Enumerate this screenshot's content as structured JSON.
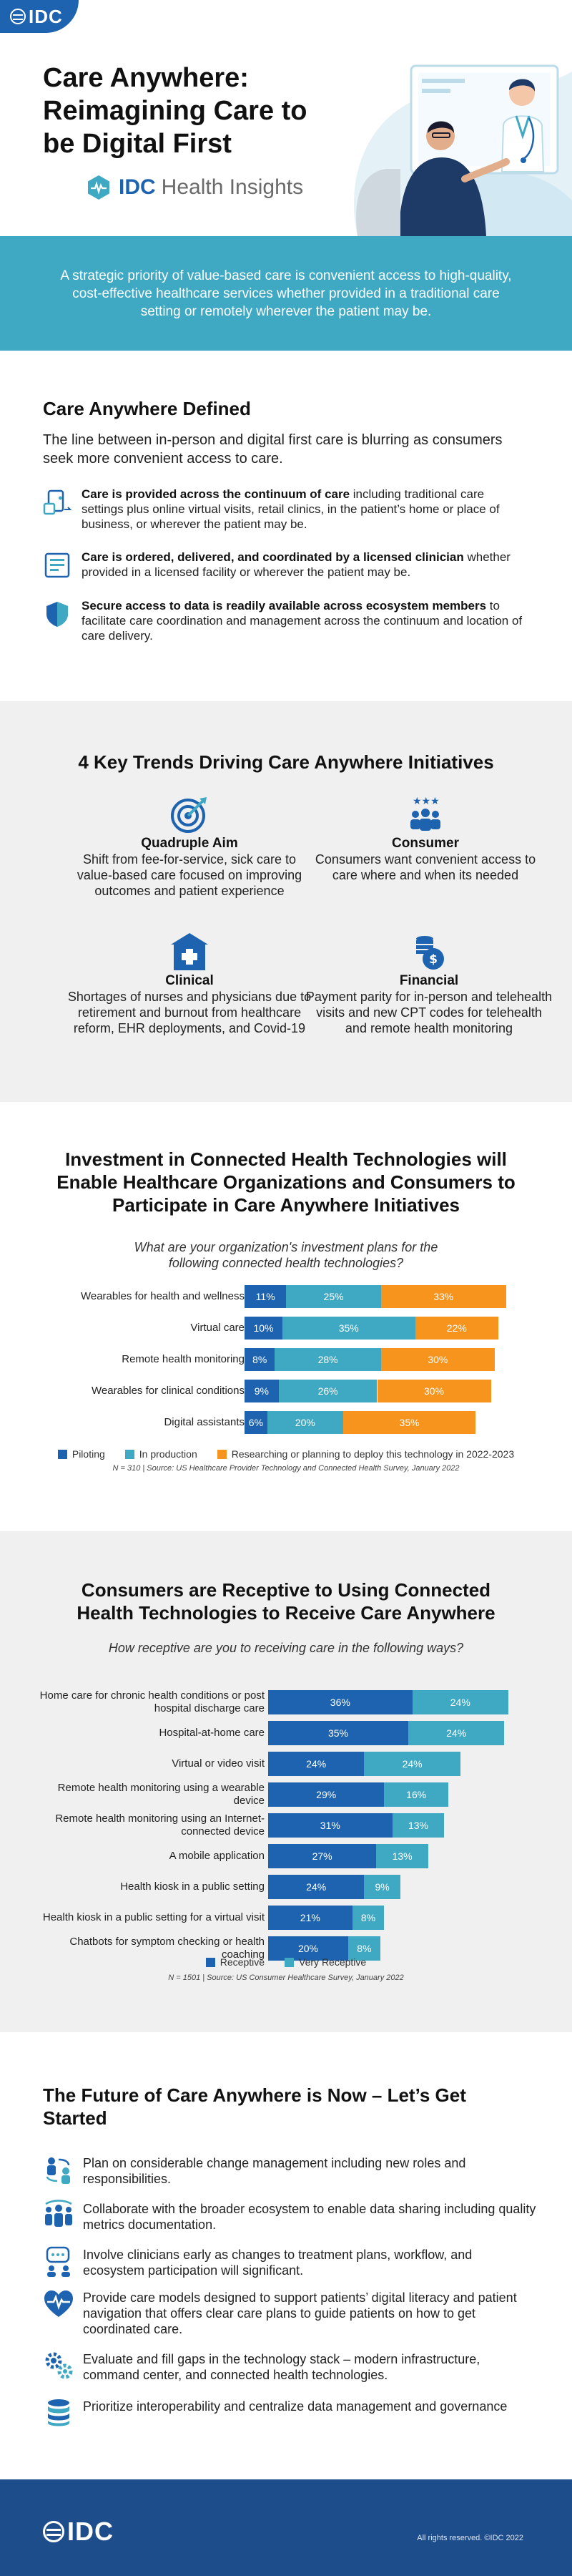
{
  "brand": {
    "logo": "IDC",
    "product_bold": "IDC",
    "product_rest": "Health Insights"
  },
  "hero": {
    "title": "Care Anywhere: Reimagining Care to be Digital First",
    "banner": "A strategic priority of value-based care is convenient access to high-quality, cost-effective healthcare services whether provided in a traditional care setting or remotely wherever the patient may be."
  },
  "defined": {
    "title": "Care Anywhere Defined",
    "lead": "The line between in-person and digital first care is blurring as consumers seek more convenient access to care.",
    "items": [
      {
        "icon": "devices-icon",
        "bold": "Care is provided across the continuum of care",
        "rest": " including traditional care settings plus online virtual visits, retail clinics, in the patient’s home or place of business, or wherever the patient may be."
      },
      {
        "icon": "document-icon",
        "bold": "Care is ordered, delivered, and coordinated by a licensed clinician",
        "rest": " whether provided in a licensed facility or wherever the patient may be."
      },
      {
        "icon": "shield-icon",
        "bold": "Secure access to data is readily available across ecosystem members",
        "rest": " to facilitate care coordination and management across the continuum and location of care delivery."
      }
    ]
  },
  "trends": {
    "title": "4 Key Trends Driving Care Anywhere Initiatives",
    "items": [
      {
        "icon": "target-icon",
        "name": "Quadruple Aim",
        "desc": "Shift from fee-for-service, sick care to value-based care focused on improving outcomes and patient experience"
      },
      {
        "icon": "people-stars-icon",
        "name": "Consumer",
        "desc": "Consumers want convenient access to care where and when its needed"
      },
      {
        "icon": "hospital-icon",
        "name": "Clinical",
        "desc": "Shortages of nurses and physicians due to retirement and burnout from healthcare reform, EHR deployments, and Covid-19"
      },
      {
        "icon": "coins-icon",
        "name": "Financial",
        "desc": "Payment parity for in-person and telehealth visits and new CPT codes for telehealth and remote health monitoring"
      }
    ]
  },
  "investment": {
    "title": "Investment in Connected Health Technologies will Enable Healthcare Organizations and Consumers to Participate in Care Anywhere Initiatives",
    "question": "What are your organization's investment plans for the following connected health technologies?",
    "source": "N = 310 | Source: US Healthcare Provider Technology and Connected Health Survey, January 2022"
  },
  "consumers": {
    "title": "Consumers are Receptive to Using Connected Health Technologies to Receive Care Anywhere",
    "question": "How receptive are you to receiving care in the following ways?",
    "source": "N = 1501 | Source: US Consumer Healthcare Survey, January 2022"
  },
  "chart_data": [
    {
      "type": "bar",
      "orientation": "horizontal",
      "stacked": true,
      "title": "What are your organization's investment plans for the following connected health technologies?",
      "categories": [
        "Wearables for health and wellness",
        "Virtual care",
        "Remote health monitoring",
        "Wearables for clinical conditions",
        "Digital assistants"
      ],
      "series": [
        {
          "name": "Piloting",
          "color": "#1e63b0",
          "values": [
            11,
            10,
            8,
            9,
            6
          ],
          "labels": [
            "11%",
            "10%",
            "8%",
            "9%",
            "6%"
          ]
        },
        {
          "name": "In production",
          "color": "#3fa9c4",
          "values": [
            25,
            35,
            28,
            26,
            20
          ],
          "labels": [
            "25%",
            "35%",
            "28%",
            "26%",
            "20%"
          ]
        },
        {
          "name": "Researching or planning to deploy this technology in 2022-2023",
          "color": "#f7941d",
          "values": [
            33,
            22,
            30,
            30,
            35
          ],
          "labels": [
            "33%",
            "22%",
            "30%",
            "30%",
            "35%"
          ]
        }
      ],
      "legend": "bottom"
    },
    {
      "type": "bar",
      "orientation": "horizontal",
      "stacked": true,
      "title": "How receptive are you to receiving care in the following ways?",
      "categories": [
        "Home care for chronic health conditions or post hospital discharge care",
        "Hospital-at-home care",
        "Virtual or video visit",
        "Remote health monitoring using a wearable device",
        "Remote health monitoring using an Internet-connected device",
        "A mobile application",
        "Health kiosk in a public setting",
        "Health kiosk in a public setting for a virtual visit",
        "Chatbots for symptom checking or health coaching"
      ],
      "series": [
        {
          "name": "Receptive",
          "color": "#1e63b0",
          "values": [
            36,
            35,
            24,
            29,
            31,
            27,
            24,
            21,
            20
          ],
          "labels": [
            "36%",
            "35%",
            "24%",
            "29%",
            "31%",
            "27%",
            "24%",
            "21%",
            "20%"
          ]
        },
        {
          "name": "Very Receptive",
          "color": "#3fa9c4",
          "values": [
            24,
            24,
            24,
            16,
            13,
            13,
            9,
            8,
            8
          ],
          "labels": [
            "24%",
            "24%",
            "24%",
            "16%",
            "13%",
            "13%",
            "9%",
            "8%",
            "8%"
          ]
        }
      ],
      "legend": "bottom"
    }
  ],
  "future": {
    "title": "The Future of Care Anywhere is Now – Let’s Get Started",
    "items": [
      {
        "icon": "change-management-icon",
        "text": "Plan on considerable change management including new roles and responsibilities."
      },
      {
        "icon": "collaboration-icon",
        "text": "Collaborate with the broader ecosystem to enable data sharing including quality metrics documentation."
      },
      {
        "icon": "clinician-chat-icon",
        "text": "Involve clinicians early as changes to treatment plans, workflow, and ecosystem participation will significant."
      },
      {
        "icon": "heart-pulse-icon",
        "text": "Provide care models designed to support patients’ digital literacy and patient navigation that offers clear care plans to guide patients on how to get coordinated care."
      },
      {
        "icon": "tech-stack-icon",
        "text": "Evaluate and fill gaps in the technology stack – modern infrastructure, command center, and connected health technologies."
      },
      {
        "icon": "database-icon",
        "text": "Prioritize interoperability and centralize data management and governance"
      }
    ]
  },
  "footer": {
    "logo": "IDC",
    "copyright": "All rights reserved. ©IDC 2022"
  }
}
